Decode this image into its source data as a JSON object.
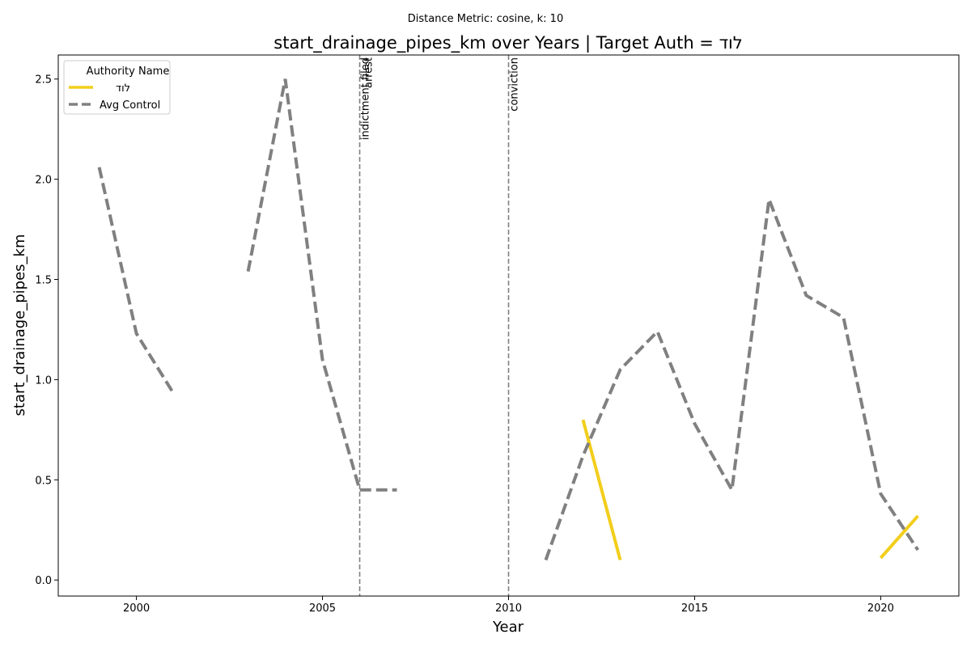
{
  "figure": {
    "suptitle": "Distance Metric: cosine, k: 10"
  },
  "chart_data": {
    "type": "line",
    "title": "start_drainage_pipes_km over Years | Target Auth = לוד",
    "xlabel": "Year",
    "ylabel": "start_drainage_pipes_km",
    "xlim": [
      1997.9,
      2022.1
    ],
    "ylim": [
      -0.08,
      2.62
    ],
    "xticks": [
      2000,
      2005,
      2010,
      2015,
      2020
    ],
    "yticks": [
      0.0,
      0.5,
      1.0,
      1.5,
      2.0,
      2.5
    ],
    "xtick_labels": [
      "2000",
      "2005",
      "2010",
      "2015",
      "2020"
    ],
    "ytick_labels": [
      "0.0",
      "0.5",
      "1.0",
      "1.5",
      "2.0",
      "2.5"
    ],
    "grid": false,
    "legend": {
      "title": "Authority Name",
      "placement": "top-left"
    },
    "series": [
      {
        "name": "לוד",
        "color": "#f2ce1b",
        "style": "solid",
        "x": [
          1999,
          2000,
          2001,
          2002,
          2003,
          2004,
          2005,
          2006,
          2007,
          2008,
          2009,
          2010,
          2011,
          2012,
          2013,
          2014,
          2015,
          2016,
          2017,
          2018,
          2019,
          2020,
          2021
        ],
        "y": [
          null,
          null,
          null,
          null,
          null,
          null,
          null,
          null,
          null,
          null,
          null,
          null,
          null,
          0.8,
          0.1,
          null,
          null,
          null,
          null,
          null,
          null,
          0.11,
          0.32
        ]
      },
      {
        "name": "Avg Control",
        "color": "#808080",
        "style": "dashed",
        "x": [
          1999,
          2000,
          2001,
          2002,
          2003,
          2004,
          2005,
          2006,
          2007,
          2008,
          2009,
          2010,
          2011,
          2012,
          2013,
          2014,
          2015,
          2016,
          2017,
          2018,
          2019,
          2020,
          2021
        ],
        "y": [
          2.06,
          1.23,
          0.93,
          null,
          1.54,
          2.5,
          1.1,
          0.45,
          0.45,
          null,
          null,
          null,
          0.1,
          0.62,
          1.05,
          1.24,
          0.78,
          0.45,
          1.9,
          1.42,
          1.31,
          0.43,
          0.15
        ]
      }
    ],
    "events": [
      {
        "x": 2006,
        "labels": [
          "indictment filed",
          "arrest"
        ]
      },
      {
        "x": 2010,
        "labels": [
          "conviction"
        ]
      }
    ]
  }
}
